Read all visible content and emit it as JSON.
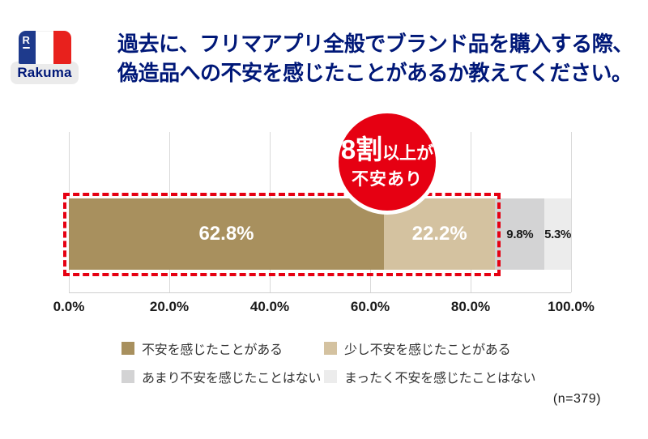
{
  "logo": {
    "brand": "Rakuma",
    "r_glyph": "R",
    "flag_colors": {
      "blue": "#1e3a8c",
      "white": "#ffffff",
      "red": "#e8211d"
    },
    "label_bg": "#ebebeb",
    "text_color": "#001878"
  },
  "title": {
    "line1": "過去に、フリマアプリ全般でブランド品を購入する際、",
    "line2": "偽造品への不安を感じたことがあるか教えてください。",
    "color": "#001878"
  },
  "badge": {
    "line1_big": "8割",
    "line1_small": "以上が",
    "line2": "不安あり",
    "bg_color": "#e60012",
    "text_color": "#ffffff"
  },
  "highlight": {
    "border_color": "#e60012",
    "style": "dashed",
    "covers_pct": 85.0
  },
  "sample_size": "(n=379)",
  "chart_data": {
    "type": "bar",
    "orientation": "horizontal",
    "stacked": true,
    "title": "",
    "xlabel": "",
    "ylabel": "",
    "xlim": [
      0,
      100
    ],
    "grid": true,
    "x_ticks": [
      "0.0%",
      "20.0%",
      "40.0%",
      "60.0%",
      "80.0%",
      "100.0%"
    ],
    "series": [
      {
        "name": "不安を感じたことがある",
        "value": 62.8,
        "label": "62.8%",
        "color": "#a8905e",
        "label_color": "#ffffff",
        "label_size": "big"
      },
      {
        "name": "少し不安を感じたことがある",
        "value": 22.2,
        "label": "22.2%",
        "color": "#d4c2a0",
        "label_color": "#ffffff",
        "label_size": "big"
      },
      {
        "name": "あまり不安を感じたことはない",
        "value": 9.8,
        "label": "9.8%",
        "color": "#d3d3d4",
        "label_color": "#1a1a1a",
        "label_size": "small"
      },
      {
        "name": "まったく不安を感じたことはない",
        "value": 5.3,
        "label": "5.3%",
        "color": "#ececec",
        "label_color": "#1a1a1a",
        "label_size": "small"
      }
    ],
    "annotation": "8割以上が不安あり",
    "legend_position": "bottom"
  }
}
